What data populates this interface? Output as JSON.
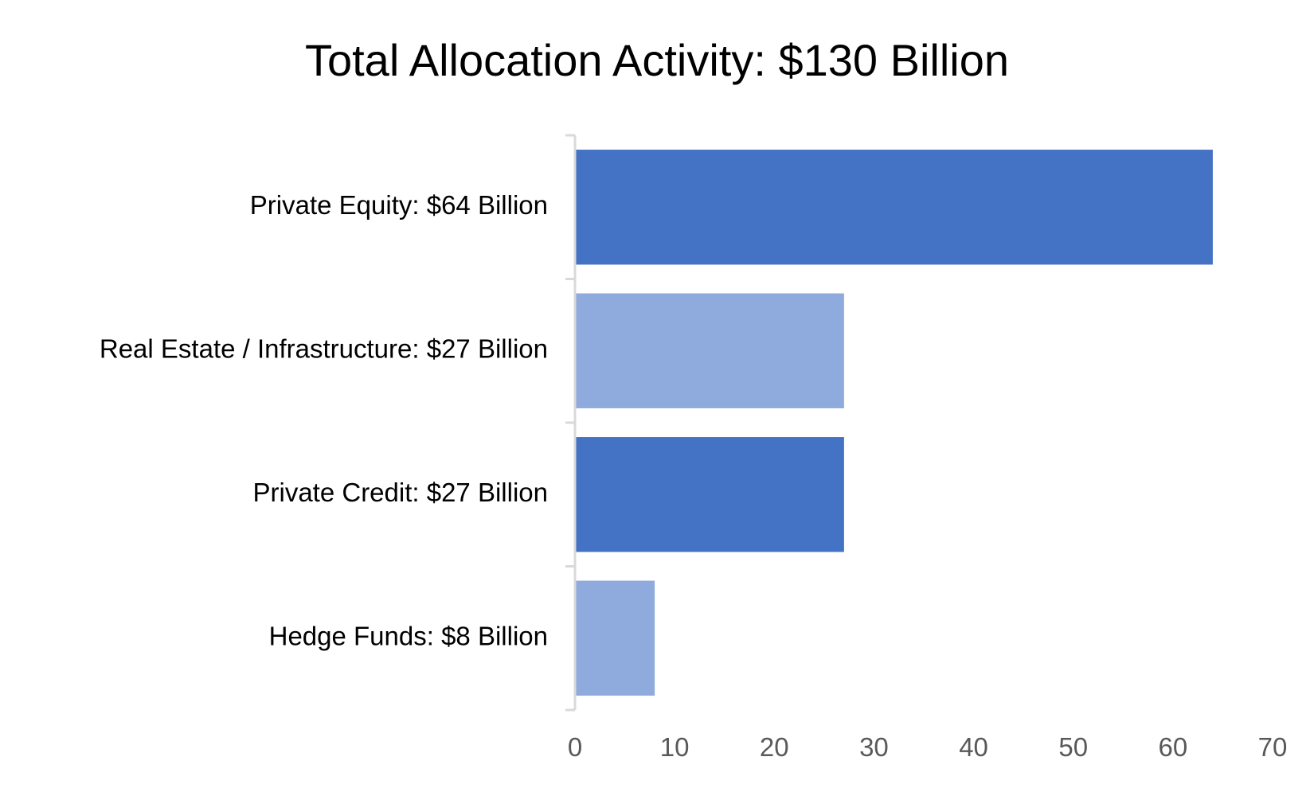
{
  "chart_data": {
    "type": "bar",
    "orientation": "horizontal",
    "title": "Total Allocation Activity: $130 Billion",
    "xlabel": "",
    "ylabel": "",
    "categories": [
      "Private Equity: $64 Billion",
      "Real Estate / Infrastructure: $27 Billion",
      "Private Credit: $27 Billion",
      "Hedge Funds: $8 Billion"
    ],
    "values": [
      64,
      27,
      27,
      8
    ],
    "bar_colors": [
      "#4472c4",
      "#8faadc",
      "#4472c4",
      "#8faadc"
    ],
    "xlim": [
      0,
      70
    ],
    "xticks": [
      "0",
      "10",
      "20",
      "30",
      "40",
      "50",
      "60",
      "70"
    ],
    "grid": false,
    "legend": "none"
  }
}
